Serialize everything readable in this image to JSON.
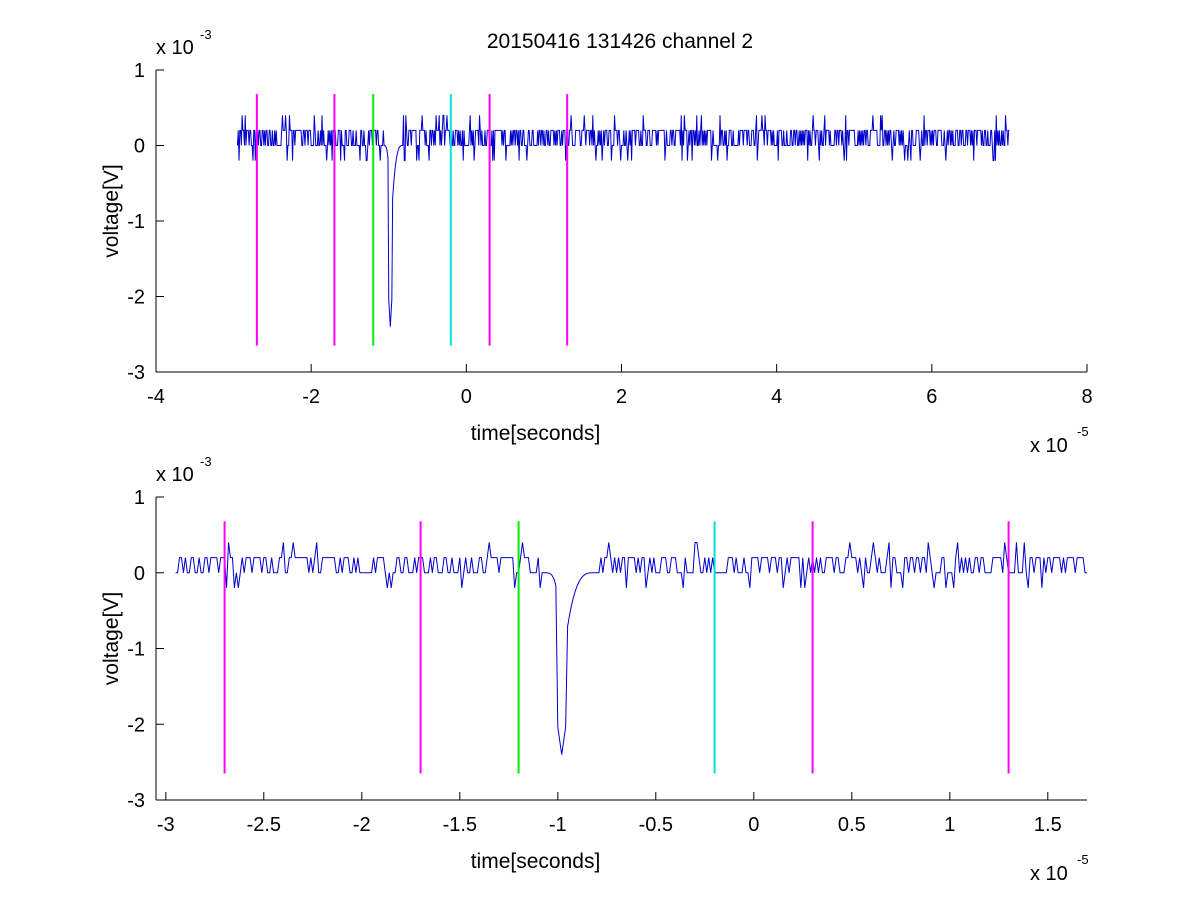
{
  "figure": {
    "title": "20150416 131426 channel 2"
  },
  "chart_data": [
    {
      "type": "line",
      "xlabel": "time[seconds]",
      "ylabel": "voltage[V]",
      "x_multiplier": "x 10",
      "x_exponent": "-5",
      "y_multiplier": "x 10",
      "y_exponent": "-3",
      "xlim": [
        -4e-05,
        8e-05
      ],
      "ylim": [
        -0.003,
        0.001
      ],
      "x_ticks": [
        -4e-05,
        -2e-05,
        0,
        2e-05,
        4e-05,
        6e-05,
        8e-05
      ],
      "x_tick_labels": [
        "-4",
        "-2",
        "0",
        "2",
        "4",
        "6",
        "8"
      ],
      "y_ticks": [
        -0.003,
        -0.002,
        -0.001,
        0,
        0.001
      ],
      "y_tick_labels": [
        "-3",
        "-2",
        "-1",
        "0",
        "1"
      ],
      "grid": false,
      "series": [
        {
          "color": "#0000cc",
          "x_start": -2.95e-05,
          "x_end": 7e-05,
          "baseline_levels": [
            -0.0002,
            0,
            0.0002,
            0.0004
          ],
          "pulse": {
            "x": -9.8e-06,
            "min": -0.0024
          }
        }
      ],
      "markers": [
        {
          "x": -2.7e-05,
          "color": "#ff00ff",
          "y_bottom": -0.00265,
          "y_top": 0.00068
        },
        {
          "x": -1.7e-05,
          "color": "#ff00ff",
          "y_bottom": -0.00265,
          "y_top": 0.00068
        },
        {
          "x": -1.2e-05,
          "color": "#00ee00",
          "y_bottom": -0.00265,
          "y_top": 0.00068
        },
        {
          "x": -2e-06,
          "color": "#00e0e0",
          "y_bottom": -0.00265,
          "y_top": 0.00068
        },
        {
          "x": 3e-06,
          "color": "#ff00ff",
          "y_bottom": -0.00265,
          "y_top": 0.00068
        },
        {
          "x": 1.3e-05,
          "color": "#ff00ff",
          "y_bottom": -0.00265,
          "y_top": 0.00068
        }
      ]
    },
    {
      "type": "line",
      "xlabel": "time[seconds]",
      "ylabel": "voltage[V]",
      "x_multiplier": "x 10",
      "x_exponent": "-5",
      "y_multiplier": "x 10",
      "y_exponent": "-3",
      "xlim": [
        -3.05e-05,
        1.7e-05
      ],
      "ylim": [
        -0.003,
        0.001
      ],
      "x_ticks": [
        -3e-05,
        -2.5e-05,
        -2e-05,
        -1.5e-05,
        -1e-05,
        -5e-06,
        0,
        5e-06,
        1e-05,
        1.5e-05
      ],
      "x_tick_labels": [
        "-3",
        "-2.5",
        "-2",
        "-1.5",
        "-1",
        "-0.5",
        "0",
        "0.5",
        "1",
        "1.5"
      ],
      "y_ticks": [
        -0.003,
        -0.002,
        -0.001,
        0,
        0.001
      ],
      "y_tick_labels": [
        "-3",
        "-2",
        "-1",
        "0",
        "1"
      ],
      "grid": false,
      "series": [
        {
          "color": "#0000cc",
          "x_start": -2.95e-05,
          "x_end": 1.7e-05,
          "baseline_levels": [
            -0.0002,
            0,
            0.0002,
            0.0004
          ],
          "pulse": {
            "x": -9.8e-06,
            "min": -0.0024
          }
        }
      ],
      "markers": [
        {
          "x": -2.7e-05,
          "color": "#ff00ff",
          "y_bottom": -0.00265,
          "y_top": 0.00068
        },
        {
          "x": -1.7e-05,
          "color": "#ff00ff",
          "y_bottom": -0.00265,
          "y_top": 0.00068
        },
        {
          "x": -1.2e-05,
          "color": "#00ee00",
          "y_bottom": -0.00265,
          "y_top": 0.00068
        },
        {
          "x": -2e-06,
          "color": "#00e0e0",
          "y_bottom": -0.00265,
          "y_top": 0.00068
        },
        {
          "x": 3e-06,
          "color": "#ff00ff",
          "y_bottom": -0.00265,
          "y_top": 0.00068
        },
        {
          "x": 1.3e-05,
          "color": "#ff00ff",
          "y_bottom": -0.00265,
          "y_top": 0.00068
        }
      ]
    }
  ]
}
